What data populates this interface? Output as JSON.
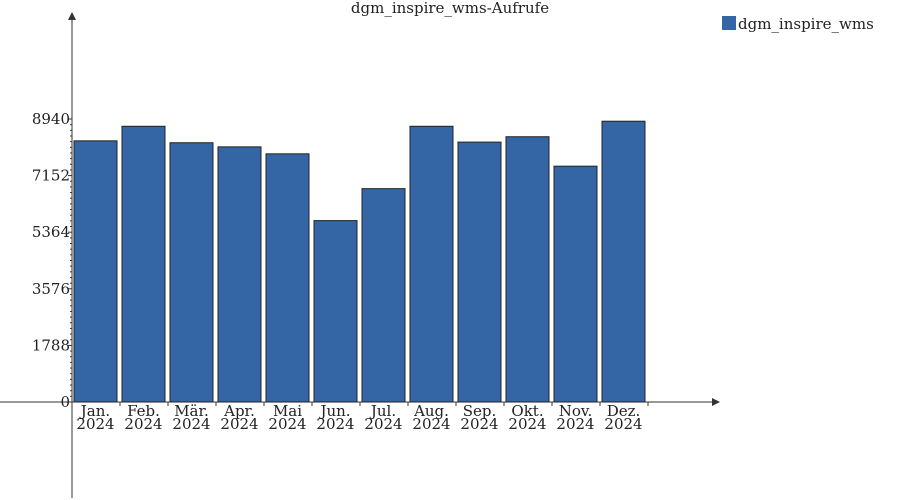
{
  "chart_data": {
    "type": "bar",
    "title": "dgm_inspire_wms-Aufrufe",
    "xlabel": "",
    "ylabel": "",
    "categories": [
      [
        "Jan.",
        "2024"
      ],
      [
        "Feb.",
        "2024"
      ],
      [
        "Mär.",
        "2024"
      ],
      [
        "Apr.",
        "2024"
      ],
      [
        "Mai",
        "2024"
      ],
      [
        "Jun.",
        "2024"
      ],
      [
        "Jul.",
        "2024"
      ],
      [
        "Aug.",
        "2024"
      ],
      [
        "Sep.",
        "2024"
      ],
      [
        "Okt.",
        "2024"
      ],
      [
        "Nov.",
        "2024"
      ],
      [
        "Dez.",
        "2024"
      ]
    ],
    "series": [
      {
        "name": "dgm_inspire_wms",
        "color": "#3465a4",
        "values": [
          8250,
          8710,
          8190,
          8060,
          7840,
          5730,
          6740,
          8710,
          8210,
          8380,
          7450,
          8870
        ]
      }
    ],
    "yticks": [
      0,
      1788,
      3576,
      5364,
      7152,
      8940
    ],
    "ylim": [
      0,
      11900
    ],
    "grid": false,
    "legend": "top-right"
  }
}
